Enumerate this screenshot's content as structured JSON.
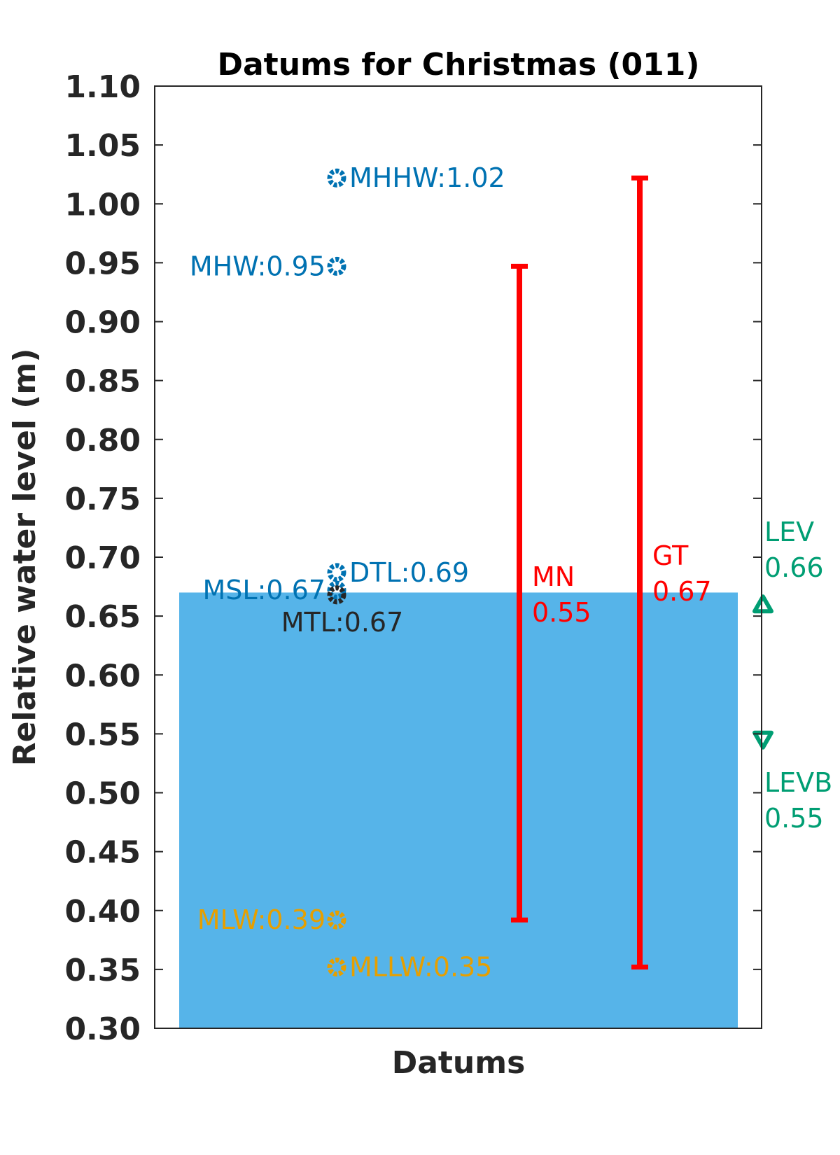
{
  "chart_data": {
    "type": "bar",
    "title": "Datums for Christmas (011)",
    "xlabel": "Datums",
    "ylabel": "Relative water level (m)",
    "ylim": [
      0.3,
      1.1
    ],
    "yticks": [
      "0.30",
      "0.35",
      "0.40",
      "0.45",
      "0.50",
      "0.55",
      "0.60",
      "0.65",
      "0.70",
      "0.75",
      "0.80",
      "0.85",
      "0.90",
      "0.95",
      "1.00",
      "1.05",
      "1.10"
    ],
    "grid": false,
    "bar": {
      "value": 0.67,
      "color": "#56B4E9"
    },
    "datums": [
      {
        "name": "MHHW",
        "value": 1.022,
        "label": "MHHW:1.02",
        "color": "#0072B2",
        "label_side": "right"
      },
      {
        "name": "MHW",
        "value": 0.947,
        "label": "MHW:0.95",
        "color": "#0072B2",
        "label_side": "left"
      },
      {
        "name": "DTL",
        "value": 0.687,
        "label": "DTL:0.69",
        "color": "#0072B2",
        "label_side": "right"
      },
      {
        "name": "MSL",
        "value": 0.672,
        "label": "MSL:0.67",
        "color": "#0072B2",
        "label_side": "left"
      },
      {
        "name": "MTL",
        "value": 0.668,
        "label": "MTL:0.67",
        "color": "#262626",
        "label_side": "below"
      },
      {
        "name": "MLW",
        "value": 0.392,
        "label": "MLW:0.39",
        "color": "#E69F00",
        "label_side": "left"
      },
      {
        "name": "MLLW",
        "value": 0.352,
        "label": "MLLW:0.35",
        "color": "#E69F00",
        "label_side": "right"
      }
    ],
    "ranges": [
      {
        "name": "MN",
        "low": 0.392,
        "high": 0.947,
        "label_line1": "MN",
        "label_line2": "0.55",
        "color": "#FF0000"
      },
      {
        "name": "GT",
        "low": 0.352,
        "high": 1.022,
        "label_line1": "GT",
        "label_line2": "0.67",
        "color": "#FF0000"
      }
    ],
    "markers": [
      {
        "name": "LEV",
        "value": 0.66,
        "label_line1": "LEV",
        "label_line2": "0.66",
        "shape": "triangle-up",
        "color": "#009E73"
      },
      {
        "name": "LEVB",
        "value": 0.545,
        "label_line1": "LEVB",
        "label_line2": "0.55",
        "shape": "triangle-down",
        "color": "#009E73"
      }
    ]
  }
}
